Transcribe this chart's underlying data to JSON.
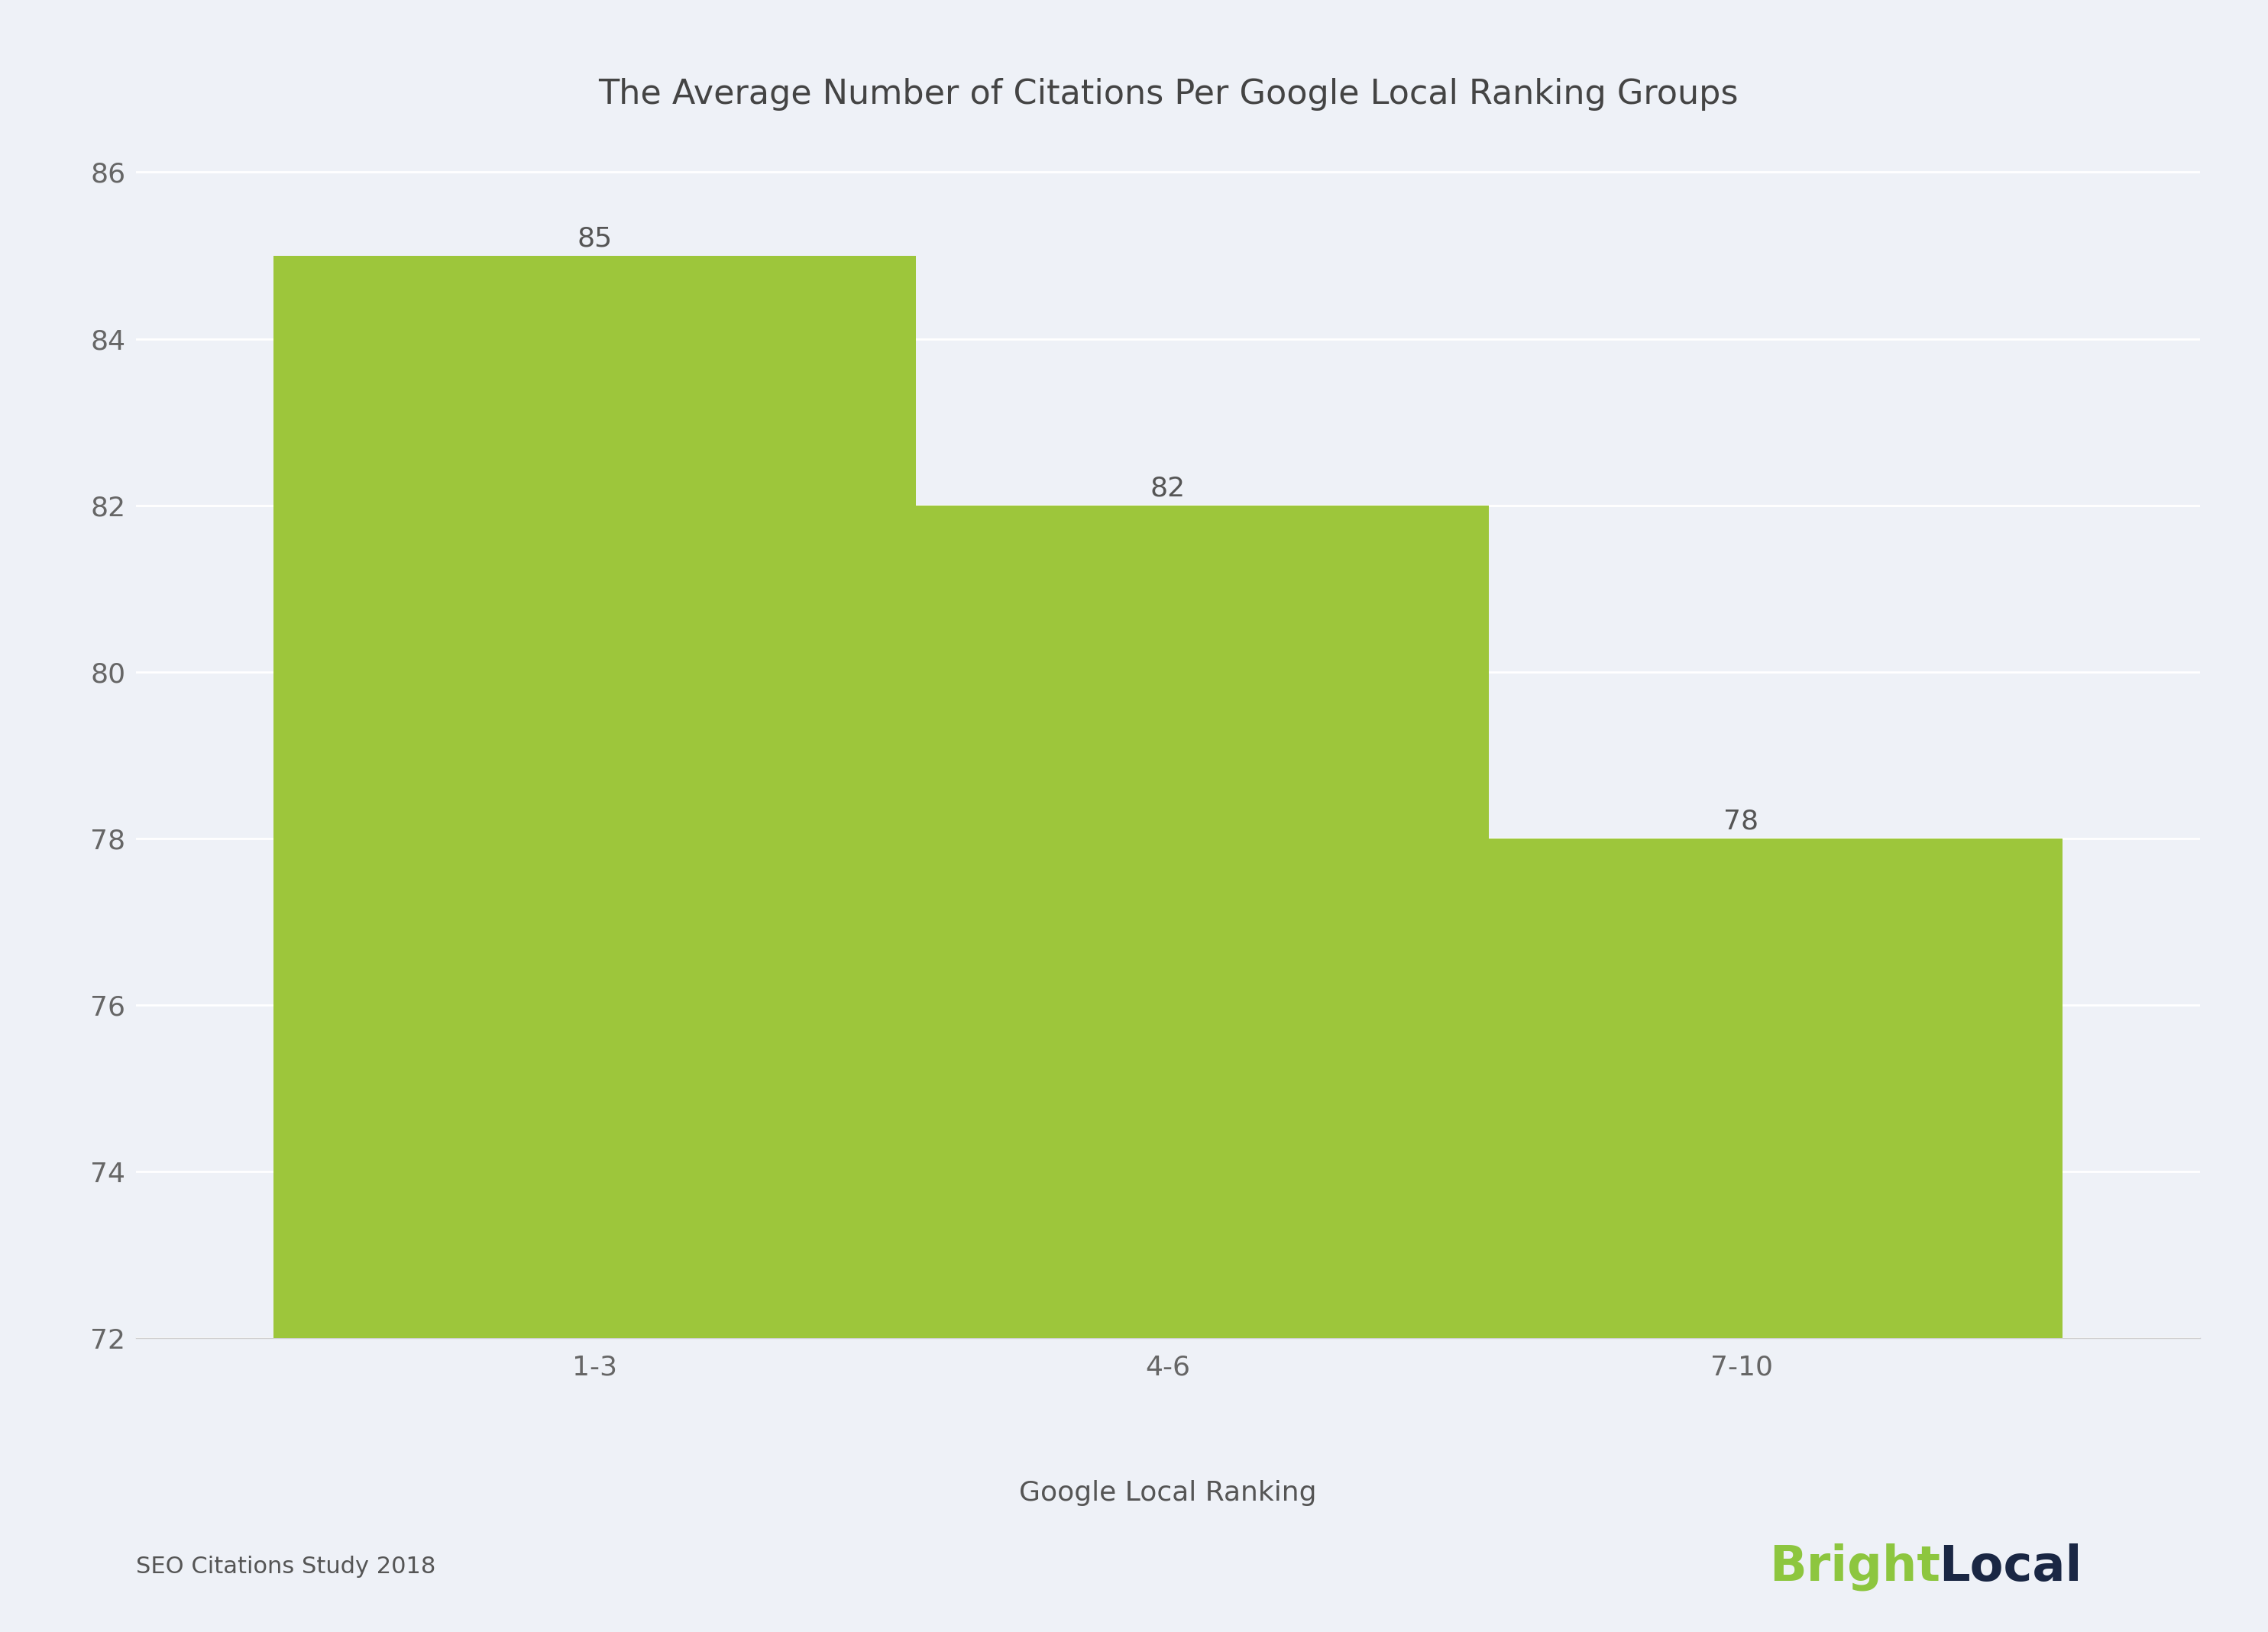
{
  "title": "The Average Number of Citations Per Google Local Ranking Groups",
  "categories": [
    "1-3",
    "4-6",
    "7-10"
  ],
  "values": [
    85,
    82,
    78
  ],
  "bar_color": "#9dc63b",
  "background_color": "#eef1f7",
  "ylim": [
    72,
    86.5
  ],
  "yticks": [
    72,
    74,
    76,
    78,
    80,
    82,
    84,
    86
  ],
  "xlabel": "Google Local Ranking",
  "footer_left": "SEO Citations Study 2018",
  "bright_color": "#8dc63f",
  "local_color": "#1a2744",
  "title_fontsize": 32,
  "tick_fontsize": 26,
  "label_fontsize": 26,
  "value_fontsize": 26,
  "footer_fontsize": 22,
  "logo_fontsize": 46,
  "bar_width": 0.28,
  "x_positions": [
    0.25,
    0.5,
    0.75
  ],
  "xlim": [
    0.05,
    0.95
  ]
}
